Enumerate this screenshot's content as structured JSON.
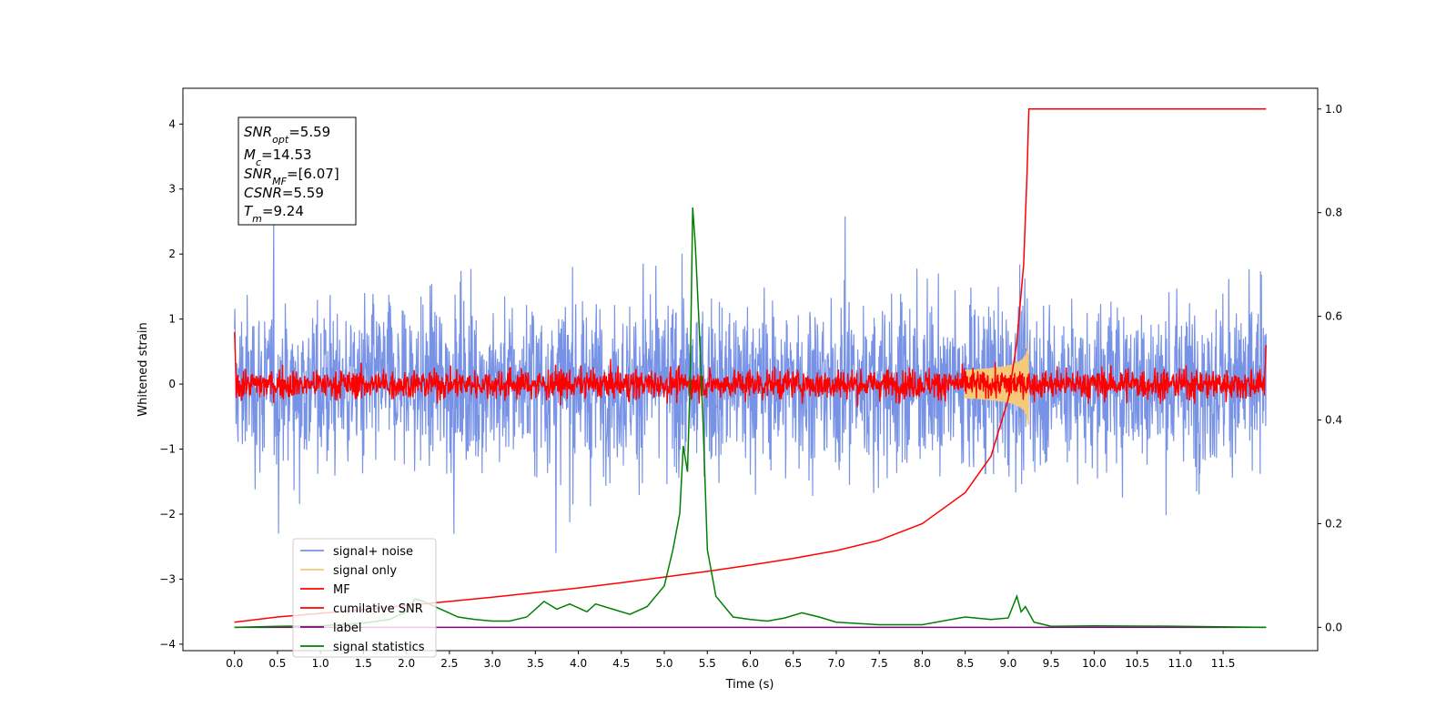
{
  "chart_data": {
    "type": "line",
    "xlabel": "Time (s)",
    "ylabel": "Whitened strain",
    "xlim": [
      -0.6,
      12.6
    ],
    "ylim": [
      -4.1,
      4.55
    ],
    "y2lim": [
      -0.045,
      1.04
    ],
    "x_ticks": [
      "0.0",
      "0.5",
      "1.0",
      "1.5",
      "2.0",
      "2.5",
      "3.0",
      "3.5",
      "4.0",
      "4.5",
      "5.0",
      "5.5",
      "6.0",
      "6.5",
      "7.0",
      "7.5",
      "8.0",
      "8.5",
      "9.0",
      "9.5",
      "10.0",
      "10.5",
      "11.0",
      "11.5"
    ],
    "y_ticks": [
      "−4",
      "−3",
      "−2",
      "−1",
      "0",
      "1",
      "2",
      "3",
      "4"
    ],
    "y2_ticks": [
      "0.0",
      "0.2",
      "0.4",
      "0.6",
      "0.8",
      "1.0"
    ],
    "legend_placement": "lower-left",
    "info_box": {
      "snr_opt": {
        "base": "SNR",
        "sub": "opt",
        "value": "=5.59"
      },
      "mc": {
        "base": "M",
        "sub": "c",
        "value": "=14.53"
      },
      "snr_mf": {
        "base": "SNR",
        "sub": "MF",
        "value": "=[6.07]"
      },
      "csnr": {
        "base": "CSNR",
        "value": "=5.59"
      },
      "tm": {
        "base": "T",
        "sub": "m",
        "value": "=9.24"
      }
    },
    "series": [
      {
        "name": "signal+ noise",
        "color": "#7893e6",
        "axis": "left",
        "style": "noise",
        "x_range": [
          0.0,
          12.0
        ],
        "spread": 0.9
      },
      {
        "name": "signal only",
        "color": "#f5c97a",
        "axis": "left",
        "style": "chirp",
        "t_merger": 9.24,
        "peak_amplitude": 0.9
      },
      {
        "name": "MF",
        "color": "#ff0000",
        "axis": "left",
        "style": "noise",
        "x_range": [
          0.0,
          12.0
        ],
        "spread": 0.16
      },
      {
        "name": "cumilative SNR",
        "color": "#ff0000",
        "axis": "right",
        "points": [
          [
            0.0,
            0.01
          ],
          [
            0.5,
            0.02
          ],
          [
            1.0,
            0.027
          ],
          [
            1.5,
            0.034
          ],
          [
            2.0,
            0.042
          ],
          [
            2.5,
            0.05
          ],
          [
            3.0,
            0.058
          ],
          [
            3.5,
            0.067
          ],
          [
            4.0,
            0.076
          ],
          [
            4.5,
            0.086
          ],
          [
            5.0,
            0.097
          ],
          [
            5.5,
            0.108
          ],
          [
            6.0,
            0.12
          ],
          [
            6.5,
            0.133
          ],
          [
            7.0,
            0.148
          ],
          [
            7.5,
            0.168
          ],
          [
            8.0,
            0.2
          ],
          [
            8.5,
            0.26
          ],
          [
            8.8,
            0.33
          ],
          [
            9.0,
            0.44
          ],
          [
            9.1,
            0.55
          ],
          [
            9.18,
            0.7
          ],
          [
            9.22,
            0.88
          ],
          [
            9.24,
            1.0
          ],
          [
            12.0,
            1.0
          ]
        ]
      },
      {
        "name": "label",
        "color": "#800080",
        "axis": "right",
        "points": [
          [
            0.0,
            0.0
          ],
          [
            12.0,
            0.0
          ]
        ]
      },
      {
        "name": "signal statistics",
        "color": "#008000",
        "axis": "right",
        "points": [
          [
            0.0,
            0.0
          ],
          [
            0.5,
            0.002
          ],
          [
            1.0,
            0.003
          ],
          [
            1.5,
            0.008
          ],
          [
            1.8,
            0.015
          ],
          [
            2.0,
            0.03
          ],
          [
            2.1,
            0.055
          ],
          [
            2.2,
            0.05
          ],
          [
            2.4,
            0.035
          ],
          [
            2.6,
            0.02
          ],
          [
            2.8,
            0.015
          ],
          [
            3.0,
            0.012
          ],
          [
            3.2,
            0.012
          ],
          [
            3.4,
            0.02
          ],
          [
            3.6,
            0.05
          ],
          [
            3.75,
            0.035
          ],
          [
            3.9,
            0.045
          ],
          [
            4.1,
            0.03
          ],
          [
            4.2,
            0.045
          ],
          [
            4.4,
            0.035
          ],
          [
            4.6,
            0.025
          ],
          [
            4.8,
            0.04
          ],
          [
            5.0,
            0.08
          ],
          [
            5.1,
            0.15
          ],
          [
            5.18,
            0.22
          ],
          [
            5.22,
            0.35
          ],
          [
            5.27,
            0.3
          ],
          [
            5.3,
            0.48
          ],
          [
            5.33,
            0.81
          ],
          [
            5.36,
            0.74
          ],
          [
            5.4,
            0.6
          ],
          [
            5.45,
            0.4
          ],
          [
            5.5,
            0.15
          ],
          [
            5.6,
            0.06
          ],
          [
            5.8,
            0.02
          ],
          [
            6.0,
            0.015
          ],
          [
            6.2,
            0.012
          ],
          [
            6.4,
            0.018
          ],
          [
            6.6,
            0.028
          ],
          [
            6.8,
            0.02
          ],
          [
            7.0,
            0.01
          ],
          [
            7.5,
            0.005
          ],
          [
            8.0,
            0.005
          ],
          [
            8.5,
            0.02
          ],
          [
            8.8,
            0.015
          ],
          [
            9.0,
            0.018
          ],
          [
            9.1,
            0.06
          ],
          [
            9.15,
            0.03
          ],
          [
            9.2,
            0.04
          ],
          [
            9.3,
            0.01
          ],
          [
            9.5,
            0.002
          ],
          [
            10.0,
            0.003
          ],
          [
            11.0,
            0.002
          ],
          [
            12.0,
            0.0
          ]
        ]
      }
    ]
  }
}
